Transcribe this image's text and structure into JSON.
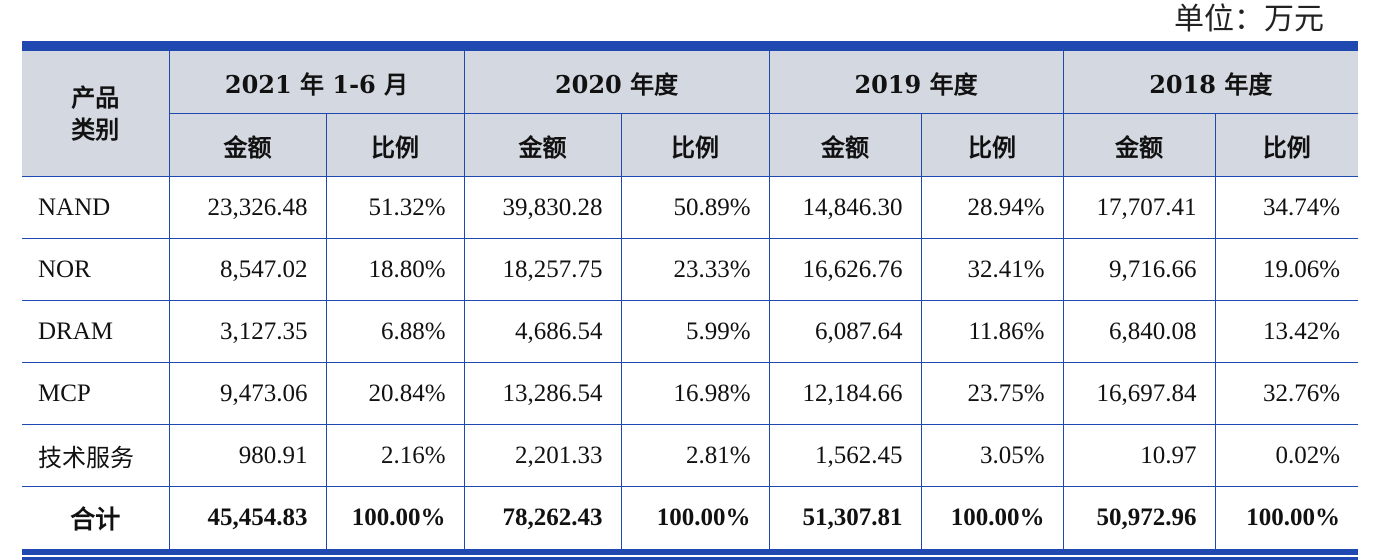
{
  "unit_label": "单位：万元",
  "table": {
    "corner_line1": "产品",
    "corner_line2": "类别",
    "periods": [
      "2021 年 1-6 月",
      "2020 年度",
      "2019 年度",
      "2018 年度"
    ],
    "amount_header": "金额",
    "ratio_header": "比例",
    "rows": [
      {
        "label": "NAND",
        "cells": [
          "23,326.48",
          "51.32%",
          "39,830.28",
          "50.89%",
          "14,846.30",
          "28.94%",
          "17,707.41",
          "34.74%"
        ]
      },
      {
        "label": "NOR",
        "cells": [
          "8,547.02",
          "18.80%",
          "18,257.75",
          "23.33%",
          "16,626.76",
          "32.41%",
          "9,716.66",
          "19.06%"
        ]
      },
      {
        "label": "DRAM",
        "cells": [
          "3,127.35",
          "6.88%",
          "4,686.54",
          "5.99%",
          "6,087.64",
          "11.86%",
          "6,840.08",
          "13.42%"
        ]
      },
      {
        "label": "MCP",
        "cells": [
          "9,473.06",
          "20.84%",
          "13,286.54",
          "16.98%",
          "12,184.66",
          "23.75%",
          "16,697.84",
          "32.76%"
        ]
      },
      {
        "label": "技术服务",
        "cells": [
          "980.91",
          "2.16%",
          "2,201.33",
          "2.81%",
          "1,562.45",
          "3.05%",
          "10.97",
          "0.02%"
        ]
      }
    ],
    "total": {
      "label": "合计",
      "cells": [
        "45,454.83",
        "100.00%",
        "78,262.43",
        "100.00%",
        "51,307.81",
        "100.00%",
        "50,972.96",
        "100.00%"
      ]
    }
  }
}
